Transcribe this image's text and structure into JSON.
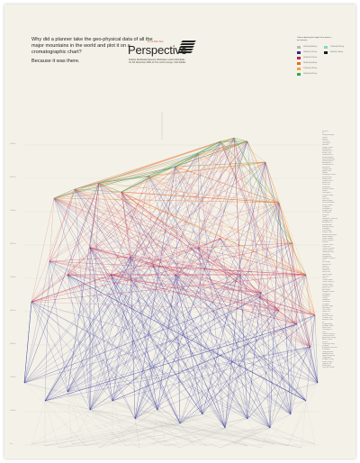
{
  "headline": {
    "question": "Why did a planner take the geo-physical data of all the major mountains in the world and plot it on a cromatographic chart?",
    "answer": "Because it was there."
  },
  "brand": {
    "kicker": "PLANNING",
    "name": "Perspective",
    "line1": "Publicis Worldwide Planners' Workshop London Worldwide",
    "line2": "On 4th November 2009, At The Lord's Lounge, Club Kafiliez"
  },
  "legend": {
    "title": "Colours depicting the height of the peaks in feet (meters)",
    "items": [
      {
        "label": "29,000 ft (8,848 m)",
        "color": "#b9b9b9"
      },
      {
        "label": "26,000 ft (7,925 m)",
        "color": "#2a2a8a"
      },
      {
        "label": "23,000 ft (7,010 m)",
        "color": "#c3204a"
      },
      {
        "label": "20,000 ft (6,096 m)",
        "color": "#e86a2a"
      },
      {
        "label": "17,000 ft (5,182 m)",
        "color": "#f2a53a"
      },
      {
        "label": "14,000 ft (4,267 m)",
        "color": "#2faa5a"
      },
      {
        "label": "11,000 ft (3,353 m)",
        "color": "#7fd7c8"
      },
      {
        "label": "8,000 ft (2,438 m)",
        "color": "#1a1a1a"
      }
    ]
  },
  "colors": {
    "sheet": "#f4f2e8",
    "blue": "#2f2f9a",
    "red": "#c42a4a",
    "orange": "#f08a30",
    "green": "#3aa95a",
    "teal": "#7fd7c8",
    "grey": "#b8b8b8"
  },
  "y_ticks": [
    "9,000 m",
    "8,000 m",
    "7,000 m",
    "6,000 m",
    "5,000 m",
    "4,000 m",
    "3,000 m",
    "2,000 m",
    "1,000 m",
    "0 m"
  ],
  "peak_names": [
    "Everest",
    "K2",
    "Kangchenjunga",
    "Lhotse",
    "Makalu",
    "Cho Oyu",
    "Dhaulagiri I",
    "Manaslu",
    "Nanga Parbat",
    "Annapurna I",
    "Gasherbrum I",
    "Broad Peak",
    "Gasherbrum II",
    "Shishapangma",
    "Gyachung Kang",
    "Gasherbrum III",
    "Annapurna II",
    "Gasherbrum IV",
    "Himalchuli",
    "Distaghil Sar",
    "Ngadi Chuli",
    "Nuptse",
    "Khunyang Chhish",
    "Masherbrum",
    "Nanda Devi",
    "Chomo Lonzo",
    "Batura Sar",
    "Kanjut Sar",
    "Rakaposhi",
    "Namcha Barwa",
    "Kamet",
    "Dhaulagiri II",
    "Saltoro Kangri",
    "Jannu",
    "Tirich Mir",
    "Molamenqing",
    "Gurla Mandhata",
    "Saser Kangri I",
    "Chogolisa",
    "Dhaulagiri IV",
    "Kongur Tagh",
    "Dhaulagiri V",
    "Shispare",
    "Trivor",
    "Gangkhar Puensum",
    "Gongga Shan",
    "Annapurna III",
    "Muztagh Ata",
    "Skyang Kangri",
    "Changtse",
    "Kula Kangri",
    "Kongur Tiube",
    "Mamostong Kangri",
    "Saser Kangri II",
    "Ismoil Somoni",
    "Saser Kangri III",
    "Noshaq",
    "Pumari Chhish",
    "Passu Sar",
    "Yukshin Gardan",
    "Teram Kangri I",
    "Jongsong Peak",
    "Malubiting",
    "Gangapurna",
    "Jengish Chokusu",
    "K12",
    "Sia Kangri",
    "Momhil Sar",
    "Kabru N",
    "Skil Brum",
    "Haramosh",
    "Istor-o-Nal",
    "Ghent Kangri",
    "Ultar Sar",
    "Rimo I",
    "Churen Himal",
    "Teram Kangri III",
    "Sherpi Kangri",
    "Labuche Kang",
    "Kirat Chuli",
    "Abi Gamin",
    "Nangpai Gosum",
    "Gimmigela",
    "Saraghrar",
    "Talung",
    "Jomolhari",
    "Chamlang",
    "Chongtar",
    "Baltoro Kangri",
    "Siguang Ri",
    "The Crown",
    "Gyala Peri",
    "Porong Ri",
    "Baintha Brakk",
    "Yutmaru Sar",
    "Baltistan Peak",
    "K6",
    "Kangpenqing",
    "Muztagh Tower",
    "Mana Peak",
    "Dhaulagiri VI",
    "Diran",
    "Labuche Kang III",
    "Putha Hiunchuli",
    "Apsarasas Kangri",
    "Mukut Parbat",
    "Rimo III",
    "Langtang Lirung",
    "Karjiang",
    "Annapurna Dakshin",
    "Khartaphu",
    "Tongshanjiabu",
    "Malangutti Sar",
    "Noijin Kangsang",
    "Langtang Ri",
    "Kangphu Kang",
    "Singhi Kangri",
    "Lupghar Sar",
    "Aconcagua",
    "Ojos del Salado"
  ]
}
